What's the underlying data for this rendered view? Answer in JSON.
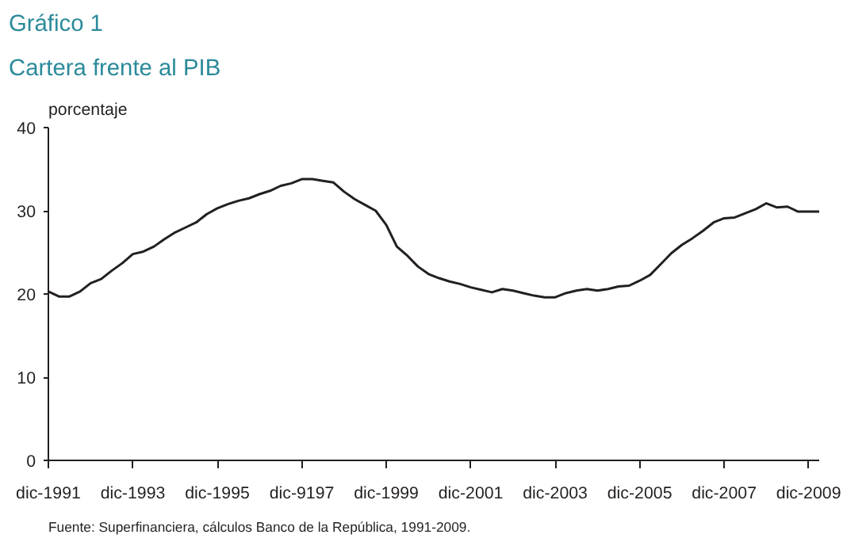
{
  "chart_data": {
    "type": "line",
    "title": "Gráfico 1",
    "subtitle": "Cartera frente al PIB",
    "ylabel": "porcentaje",
    "annotations": [
      "Fuente: Superfinanciera, cálculos Banco de la República, 1991-2009."
    ],
    "categories": [
      "dic-1991",
      null,
      null,
      null,
      null,
      null,
      null,
      null,
      "dic-1993",
      null,
      null,
      null,
      null,
      null,
      null,
      null,
      "dic-1995",
      null,
      null,
      null,
      null,
      null,
      null,
      null,
      "dic-9197",
      null,
      null,
      null,
      null,
      null,
      null,
      null,
      "dic-1999",
      null,
      null,
      null,
      null,
      null,
      null,
      null,
      "dic-2001",
      null,
      null,
      null,
      null,
      null,
      null,
      null,
      "dic-2003",
      null,
      null,
      null,
      null,
      null,
      null,
      null,
      "dic-2005",
      null,
      null,
      null,
      null,
      null,
      null,
      null,
      "dic-2007",
      null,
      null,
      null,
      null,
      null,
      null,
      null,
      "dic-2009",
      null
    ],
    "series": [
      {
        "color": "#231f20",
        "values": [
          20.3,
          19.7,
          19.7,
          20.3,
          21.3,
          21.8,
          22.8,
          23.7,
          24.8,
          25.1,
          25.7,
          26.6,
          27.4,
          28.0,
          28.6,
          29.6,
          30.3,
          30.8,
          31.2,
          31.5,
          32.0,
          32.4,
          33.0,
          33.3,
          33.8,
          33.8,
          33.6,
          33.4,
          32.3,
          31.4,
          30.7,
          30.0,
          28.3,
          25.7,
          24.6,
          23.3,
          22.4,
          21.9,
          21.5,
          21.2,
          20.8,
          20.5,
          20.2,
          20.6,
          20.4,
          20.1,
          19.8,
          19.6,
          19.6,
          20.1,
          20.4,
          20.6,
          20.4,
          20.6,
          20.9,
          21.0,
          21.6,
          22.3,
          23.6,
          24.9,
          25.9,
          26.7,
          27.6,
          28.6,
          29.1,
          29.2,
          29.7,
          30.2,
          30.9,
          30.4,
          30.5,
          29.9,
          29.9,
          29.9
        ]
      }
    ],
    "ylim": [
      0,
      40
    ],
    "yticks": [
      0,
      10,
      20,
      30,
      40
    ],
    "line_style": "solid"
  }
}
